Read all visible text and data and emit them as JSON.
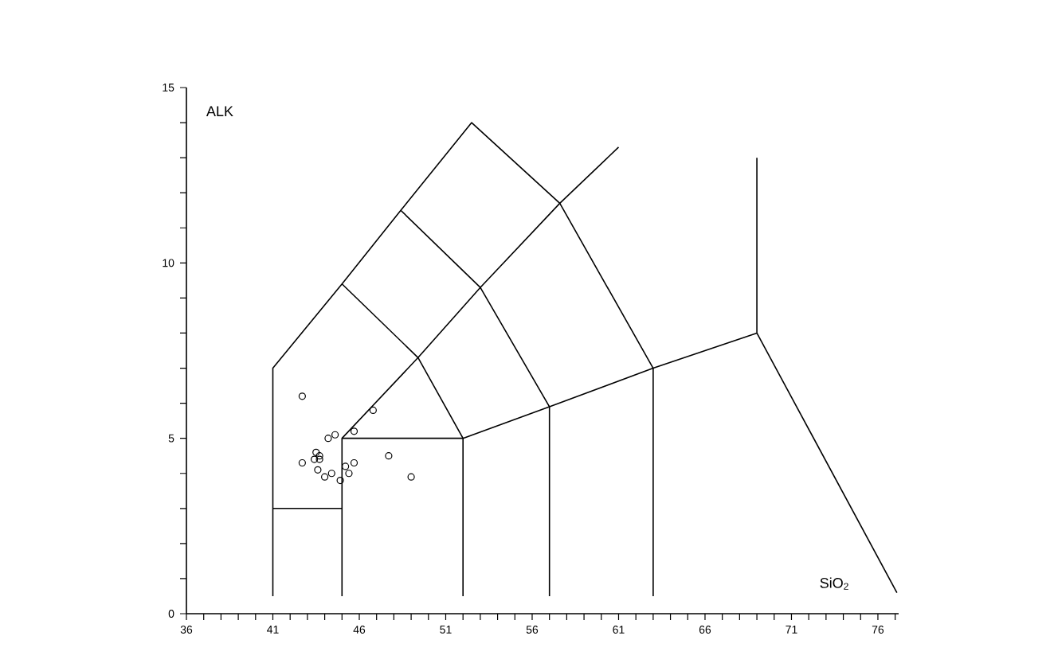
{
  "chart_data": {
    "type": "scatter",
    "xlabel": "SiO$_{2}$",
    "ylabel": "ALK",
    "xlim": [
      36,
      77.2
    ],
    "ylim": [
      0,
      15
    ],
    "xticks": [
      36,
      {
        "value": 37,
        "label": null
      },
      {
        "value": 38,
        "label": null
      },
      {
        "value": 39,
        "label": null
      },
      {
        "value": 40,
        "label": null
      },
      41,
      {
        "value": 42,
        "label": null
      },
      {
        "value": 43,
        "label": null
      },
      {
        "value": 44,
        "label": null
      },
      {
        "value": 45,
        "label": null
      },
      46,
      {
        "value": 47,
        "label": null
      },
      {
        "value": 48,
        "label": null
      },
      {
        "value": 49,
        "label": null
      },
      {
        "value": 50,
        "label": null
      },
      51,
      {
        "value": 52,
        "label": null
      },
      {
        "value": 53,
        "label": null
      },
      {
        "value": 54,
        "label": null
      },
      {
        "value": 55,
        "label": null
      },
      56,
      {
        "value": 57,
        "label": null
      },
      {
        "value": 58,
        "label": null
      },
      {
        "value": 59,
        "label": null
      },
      {
        "value": 60,
        "label": null
      },
      61,
      {
        "value": 62,
        "label": null
      },
      {
        "value": 63,
        "label": null
      },
      {
        "value": 64,
        "label": null
      },
      {
        "value": 65,
        "label": null
      },
      66,
      {
        "value": 67,
        "label": null
      },
      {
        "value": 68,
        "label": null
      },
      {
        "value": 69,
        "label": null
      },
      {
        "value": 70,
        "label": null
      },
      71,
      {
        "value": 72,
        "label": null
      },
      {
        "value": 73,
        "label": null
      },
      {
        "value": 74,
        "label": null
      },
      {
        "value": 75,
        "label": null
      },
      76,
      {
        "value": 77,
        "label": null
      }
    ],
    "yticks": [
      0,
      {
        "value": 1,
        "label": null
      },
      {
        "value": 2,
        "label": null
      },
      {
        "value": 3,
        "label": null
      },
      {
        "value": 4,
        "label": null
      },
      5,
      {
        "value": 6,
        "label": null
      },
      {
        "value": 7,
        "label": null
      },
      {
        "value": 8,
        "label": null
      },
      {
        "value": 9,
        "label": null
      },
      10,
      {
        "value": 11,
        "label": null
      },
      {
        "value": 12,
        "label": null
      },
      {
        "value": 13,
        "label": null
      },
      {
        "value": 14,
        "label": null
      },
      15
    ],
    "series": [
      {
        "type": "line",
        "marker": "none",
        "color": "#000000",
        "x": [
          41,
          41,
          45,
          48.4,
          52.5,
          57.6,
          63,
          63
        ],
        "values": [
          0.5,
          7,
          9.4,
          11.5,
          14,
          11.7,
          7,
          0.5
        ]
      },
      {
        "type": "line",
        "marker": "none",
        "color": "#000000",
        "x": [
          41,
          45
        ],
        "values": [
          3,
          3
        ]
      },
      {
        "type": "line",
        "marker": "none",
        "color": "#000000",
        "x": [
          45,
          45,
          52,
          52
        ],
        "values": [
          0.5,
          5,
          5,
          0.5
        ]
      },
      {
        "type": "line",
        "marker": "none",
        "color": "#000000",
        "x": [
          45,
          49.4,
          52,
          57,
          63,
          69,
          69
        ],
        "values": [
          9.4,
          7.3,
          5,
          5.9,
          7,
          8,
          13
        ]
      },
      {
        "type": "line",
        "marker": "none",
        "color": "#000000",
        "x": [
          69,
          77.1
        ],
        "values": [
          8,
          0.6
        ]
      },
      {
        "type": "line",
        "marker": "none",
        "color": "#000000",
        "x": [
          48.4,
          53,
          57,
          57
        ],
        "values": [
          11.5,
          9.3,
          5.9,
          0.5
        ]
      },
      {
        "type": "line",
        "marker": "none",
        "color": "#000000",
        "x": [
          45,
          49.4,
          53,
          57.6,
          61
        ],
        "values": [
          5,
          7.3,
          9.3,
          11.7,
          13.3
        ]
      },
      {
        "marker": "circle",
        "color": "#000000",
        "x": [
          42.7,
          44.2,
          44.6,
          45.7,
          43.5,
          43.7,
          43.4,
          43.7,
          42.7,
          43.6,
          44.4,
          44.0,
          45.2,
          45.7,
          45.4,
          44.9,
          47.7,
          49.0,
          46.8
        ],
        "values": [
          6.2,
          5.0,
          5.1,
          5.2,
          4.6,
          4.5,
          4.4,
          4.4,
          4.3,
          4.1,
          4.0,
          3.9,
          4.2,
          4.3,
          4.0,
          3.8,
          4.5,
          3.9,
          5.8
        ]
      }
    ]
  }
}
